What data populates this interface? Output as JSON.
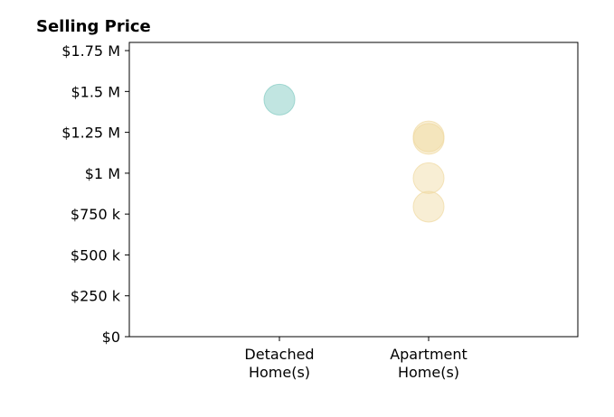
{
  "chart_data": {
    "type": "scatter",
    "title": "Selling Price",
    "xlabel": "",
    "ylabel": "",
    "categories": [
      [
        "Detached",
        "Home(s)"
      ],
      [
        "Apartment",
        "Home(s)"
      ]
    ],
    "y_tick_labels": [
      "$0",
      "$250 k",
      "$500 k",
      "$750 k",
      "$1 M",
      "$1.25 M",
      "$1.5 M",
      "$1.75 M"
    ],
    "y_tick_values": [
      0,
      250000,
      500000,
      750000,
      1000000,
      1250000,
      1500000,
      1750000
    ],
    "ylim": [
      0,
      1800000
    ],
    "grid": false,
    "series": [
      {
        "color": "#8ecfc8",
        "opacity": 0.55,
        "points": [
          {
            "category": 0,
            "y": 1450000
          }
        ]
      },
      {
        "color": "#f0d9a0",
        "opacity": 0.45,
        "points": [
          {
            "category": 1,
            "y": 1225000
          },
          {
            "category": 1,
            "y": 1210000
          },
          {
            "category": 1,
            "y": 970000
          },
          {
            "category": 1,
            "y": 795000
          }
        ]
      }
    ]
  }
}
